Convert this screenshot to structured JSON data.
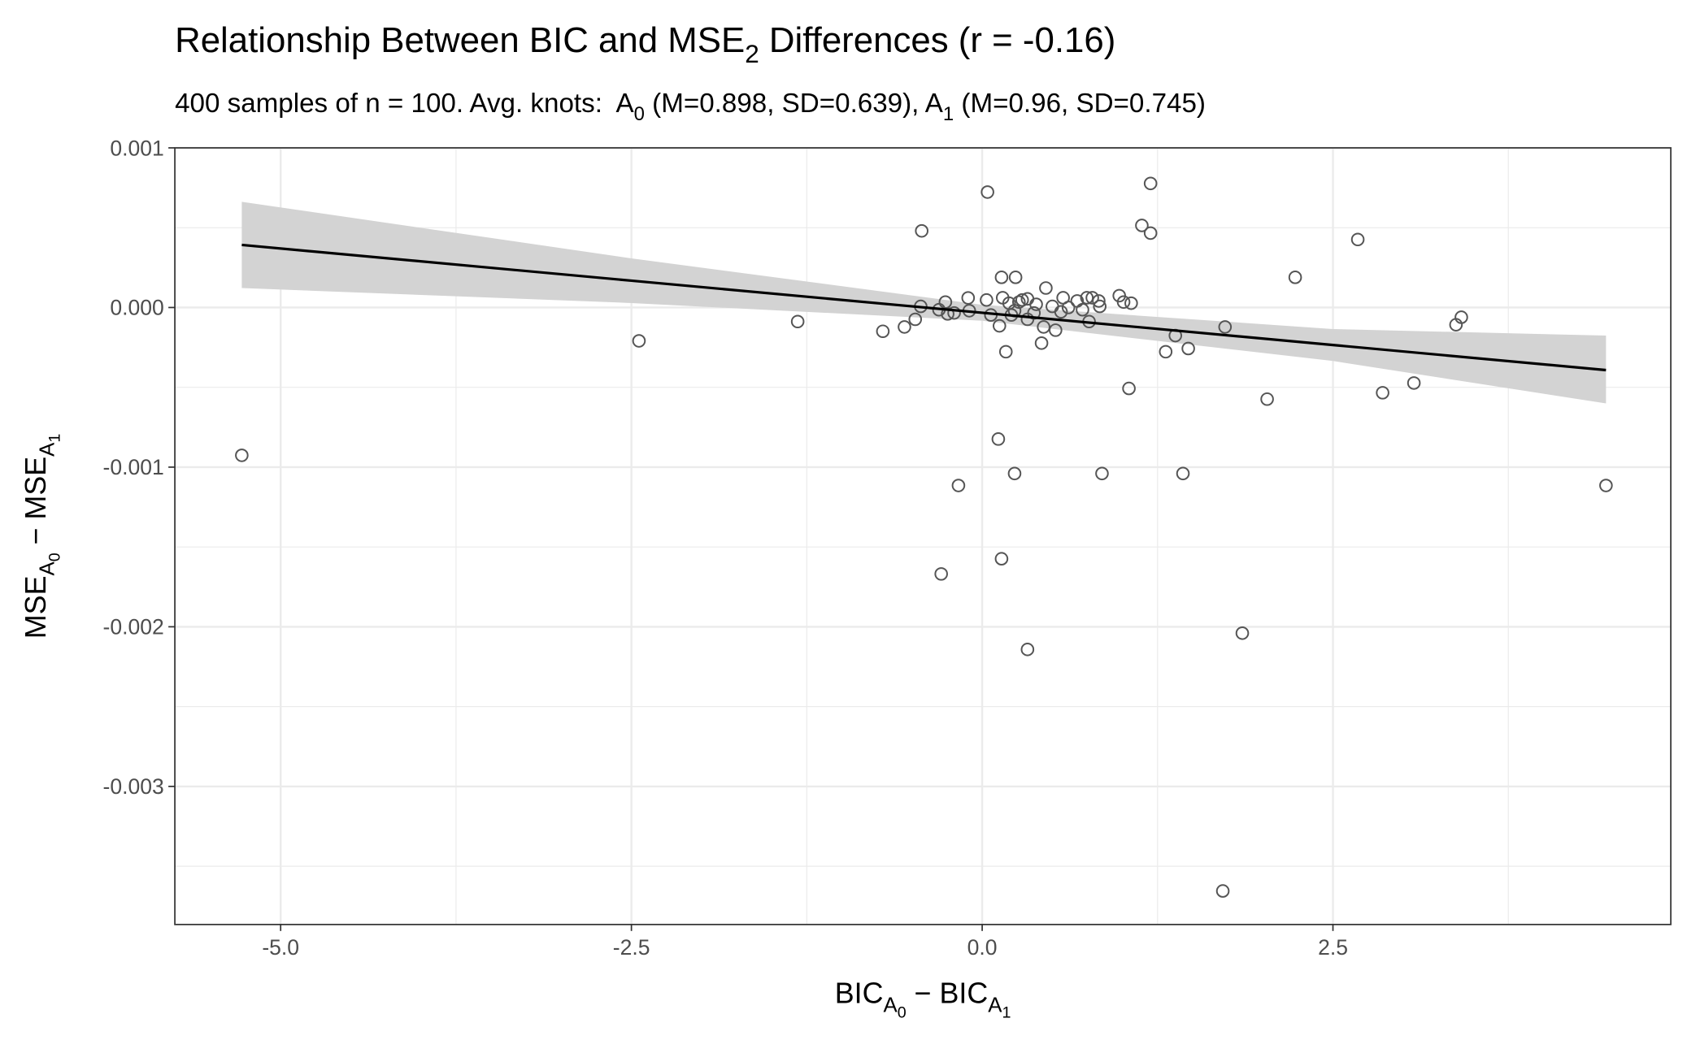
{
  "chart_data": {
    "type": "scatter",
    "title": [
      {
        "text": "Relationship Between BIC and MSE"
      },
      {
        "text": "2",
        "sub": 1
      },
      {
        "text": " Differences (r = -0.16)"
      }
    ],
    "subtitle": [
      {
        "text": "400 samples of n = 100. Avg. knots:  A"
      },
      {
        "text": "0",
        "sub": 1
      },
      {
        "text": " (M=0.898, SD=0.639), A"
      },
      {
        "text": "1",
        "sub": 1
      },
      {
        "text": " (M=0.96, SD=0.745)"
      }
    ],
    "x_label": [
      {
        "text": "BIC"
      },
      {
        "text": "A",
        "sub": 1
      },
      {
        "text": "0",
        "sub": 2
      },
      {
        "text": " − BIC"
      },
      {
        "text": "A",
        "sub": 1
      },
      {
        "text": "1",
        "sub": 2
      }
    ],
    "y_label": [
      {
        "text": "MSE"
      },
      {
        "text": "A",
        "sub": 1
      },
      {
        "text": "0",
        "sub": 2
      },
      {
        "text": " − MSE"
      },
      {
        "text": "A",
        "sub": 1
      },
      {
        "text": "1",
        "sub": 2
      }
    ],
    "xlim": [
      -5.754,
      4.908
    ],
    "ylim": [
      -0.003865,
      0.001
    ],
    "xticks": [
      {
        "value": -5,
        "label": "-5.0"
      },
      {
        "value": -2.5,
        "label": "-2.5"
      },
      {
        "value": 0,
        "label": "0.0"
      },
      {
        "value": 2.5,
        "label": "2.5"
      }
    ],
    "yticks": [
      0.001,
      {
        "value": 0,
        "label": "0.000"
      },
      -0.001,
      -0.002,
      -0.003
    ],
    "x_minor_grid": [
      -3.75,
      -1.25,
      1.25,
      3.75
    ],
    "y_minor_grid": [
      0.0005,
      -0.0005,
      -0.0015,
      -0.0025,
      -0.0035
    ],
    "grid": true,
    "point_color": "#555555",
    "x": [
      -5.277,
      -2.446,
      -1.315,
      -0.708,
      -0.554,
      -0.477,
      -0.438,
      -0.431,
      0.038,
      1.2,
      1.138,
      1.2,
      2.677,
      2.231,
      3.415,
      3.377,
      1.731,
      1.377,
      1.308,
      1.469,
      0.169,
      0.423,
      1.046,
      2.031,
      2.854,
      3.077,
      0.115,
      -0.169,
      0.231,
      0.854,
      1.431,
      4.446,
      -0.292,
      0.138,
      1.854,
      0.323,
      1.715,
      -0.1,
      -0.262,
      -0.308,
      -0.246,
      -0.2,
      -0.092,
      0.031,
      0.062,
      0.138,
      0.238,
      0.146,
      0.192,
      0.123,
      0.262,
      0.323,
      0.323,
      0.385,
      0.454,
      0.438,
      0.523,
      0.5,
      0.577,
      0.615,
      0.677,
      0.746,
      0.762,
      0.831,
      0.838,
      0.977,
      1.008,
      1.062,
      0.785,
      0.231,
      0.369,
      0.285,
      0.208,
      0.562,
      0.715
    ],
    "values": [
      -0.000926,
      -0.000209,
      -8.8e-05,
      -0.000149,
      -0.000122,
      -7.4e-05,
      7e-06,
      0.00048,
      0.000723,
      0.000777,
      0.000514,
      0.000466,
      0.000426,
      0.000189,
      -6.1e-05,
      -0.000108,
      -0.000122,
      -0.000176,
      -0.000277,
      -0.000257,
      -0.000277,
      -0.000223,
      -0.000507,
      -0.000574,
      -0.000534,
      -0.000473,
      -0.000824,
      -0.001115,
      -0.00104,
      -0.00104,
      -0.00104,
      -0.001115,
      -0.001669,
      -0.001574,
      -0.00204,
      -0.002142,
      -0.003655,
      6e-05,
      3.4e-05,
      -1.4e-05,
      -4e-05,
      -3.4e-05,
      -2e-05,
      4.7e-05,
      -4.7e-05,
      0.000189,
      0.000189,
      6.1e-05,
      2.7e-05,
      -0.000115,
      3.4e-05,
      5.4e-05,
      -7.4e-05,
      2e-05,
      0.000122,
      -0.000122,
      -0.000142,
      7e-06,
      6.1e-05,
      0,
      4.1e-05,
      6.1e-05,
      -8.8e-05,
      4.1e-05,
      7e-06,
      7.4e-05,
      3.4e-05,
      2.7e-05,
      6.1e-05,
      -2e-05,
      -3.4e-05,
      4.7e-05,
      -4.7e-05,
      -2.7e-05,
      -1.4e-05
    ],
    "fit": {
      "color": "#000000",
      "band_color": "#d3d3d3",
      "x": [
        -5.277,
        -2.5,
        0,
        2.5,
        4.446
      ],
      "values": [
        0.000392,
        0.000168,
        -3.3e-05,
        -0.000235,
        -0.000392
      ],
      "lower": [
        0.000122,
        2.8e-05,
        -8.3e-05,
        -0.000335,
        -0.000601
      ],
      "upper": [
        0.000662,
        0.000308,
        1.7e-05,
        -0.000135,
        -0.000176
      ]
    }
  }
}
